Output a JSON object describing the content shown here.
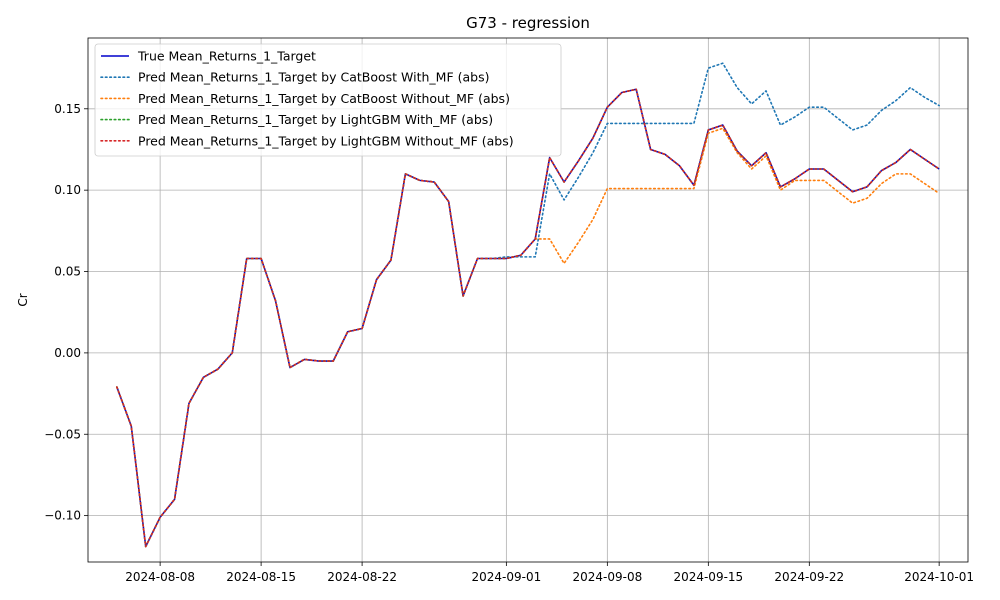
{
  "chart_data": {
    "type": "line",
    "title": "G73 - regression",
    "xlabel": "",
    "ylabel": "Cr",
    "grid": true,
    "legend_position": "upper-left",
    "x_ticks": [
      "2024-08-08",
      "2024-08-15",
      "2024-08-22",
      "2024-09-01",
      "2024-09-08",
      "2024-09-15",
      "2024-09-22",
      "2024-10-01"
    ],
    "y_ticks": [
      "−0.10",
      "−0.05",
      "0.00",
      "0.05",
      "0.10",
      "0.15"
    ],
    "xlim": [
      "2024-08-03",
      "2024-10-03"
    ],
    "ylim": [
      -0.1285,
      0.1935
    ],
    "series": [
      {
        "name": "True Mean_Returns_1_Target",
        "color": "#0000cc",
        "style": "solid",
        "points": [
          [
            "2024-08-05",
            -0.021
          ],
          [
            "2024-08-06",
            -0.045
          ],
          [
            "2024-08-07",
            -0.119
          ],
          [
            "2024-08-08",
            -0.101
          ],
          [
            "2024-08-09",
            -0.09
          ],
          [
            "2024-08-10",
            -0.031
          ],
          [
            "2024-08-11",
            -0.015
          ],
          [
            "2024-08-12",
            -0.01
          ],
          [
            "2024-08-13",
            0.0
          ],
          [
            "2024-08-14",
            0.058
          ],
          [
            "2024-08-15",
            0.058
          ],
          [
            "2024-08-16",
            0.032
          ],
          [
            "2024-08-17",
            -0.009
          ],
          [
            "2024-08-18",
            -0.004
          ],
          [
            "2024-08-19",
            -0.005
          ],
          [
            "2024-08-20",
            -0.005
          ],
          [
            "2024-08-21",
            0.013
          ],
          [
            "2024-08-22",
            0.015
          ],
          [
            "2024-08-23",
            0.045
          ],
          [
            "2024-08-24",
            0.057
          ],
          [
            "2024-08-25",
            0.11
          ],
          [
            "2024-08-26",
            0.106
          ],
          [
            "2024-08-27",
            0.105
          ],
          [
            "2024-08-28",
            0.093
          ],
          [
            "2024-08-29",
            0.035
          ],
          [
            "2024-08-30",
            0.058
          ],
          [
            "2024-08-31",
            0.058
          ],
          [
            "2024-09-01",
            0.058
          ],
          [
            "2024-09-02",
            0.06
          ],
          [
            "2024-09-03",
            0.07
          ],
          [
            "2024-09-04",
            0.12
          ],
          [
            "2024-09-05",
            0.105
          ],
          [
            "2024-09-06",
            0.118
          ],
          [
            "2024-09-07",
            0.132
          ],
          [
            "2024-09-08",
            0.151
          ],
          [
            "2024-09-09",
            0.16
          ],
          [
            "2024-09-10",
            0.162
          ],
          [
            "2024-09-11",
            0.125
          ],
          [
            "2024-09-12",
            0.122
          ],
          [
            "2024-09-13",
            0.115
          ],
          [
            "2024-09-14",
            0.103
          ],
          [
            "2024-09-15",
            0.137
          ],
          [
            "2024-09-16",
            0.14
          ],
          [
            "2024-09-17",
            0.124
          ],
          [
            "2024-09-18",
            0.115
          ],
          [
            "2024-09-19",
            0.123
          ],
          [
            "2024-09-20",
            0.102
          ],
          [
            "2024-09-21",
            0.107
          ],
          [
            "2024-09-22",
            0.113
          ],
          [
            "2024-09-23",
            0.113
          ],
          [
            "2024-09-24",
            0.106
          ],
          [
            "2024-09-25",
            0.099
          ],
          [
            "2024-09-26",
            0.102
          ],
          [
            "2024-09-27",
            0.112
          ],
          [
            "2024-09-28",
            0.117
          ],
          [
            "2024-09-29",
            0.125
          ],
          [
            "2024-09-30",
            0.119
          ],
          [
            "2024-10-01",
            0.113
          ]
        ]
      },
      {
        "name": "Pred Mean_Returns_1_Target by CatBoost With_MF (abs)",
        "color": "#1f77b4",
        "style": "dotted",
        "points": [
          [
            "2024-08-05",
            -0.021
          ],
          [
            "2024-08-06",
            -0.045
          ],
          [
            "2024-08-07",
            -0.119
          ],
          [
            "2024-08-08",
            -0.101
          ],
          [
            "2024-08-09",
            -0.09
          ],
          [
            "2024-08-10",
            -0.031
          ],
          [
            "2024-08-11",
            -0.015
          ],
          [
            "2024-08-12",
            -0.01
          ],
          [
            "2024-08-13",
            0.0
          ],
          [
            "2024-08-14",
            0.058
          ],
          [
            "2024-08-15",
            0.058
          ],
          [
            "2024-08-16",
            0.032
          ],
          [
            "2024-08-17",
            -0.009
          ],
          [
            "2024-08-18",
            -0.004
          ],
          [
            "2024-08-19",
            -0.005
          ],
          [
            "2024-08-20",
            -0.005
          ],
          [
            "2024-08-21",
            0.013
          ],
          [
            "2024-08-22",
            0.015
          ],
          [
            "2024-08-23",
            0.045
          ],
          [
            "2024-08-24",
            0.057
          ],
          [
            "2024-08-25",
            0.11
          ],
          [
            "2024-08-26",
            0.106
          ],
          [
            "2024-08-27",
            0.105
          ],
          [
            "2024-08-28",
            0.093
          ],
          [
            "2024-08-29",
            0.035
          ],
          [
            "2024-08-30",
            0.058
          ],
          [
            "2024-08-31",
            0.058
          ],
          [
            "2024-09-01",
            0.059
          ],
          [
            "2024-09-02",
            0.059
          ],
          [
            "2024-09-03",
            0.059
          ],
          [
            "2024-09-04",
            0.11
          ],
          [
            "2024-09-05",
            0.094
          ],
          [
            "2024-09-06",
            0.108
          ],
          [
            "2024-09-07",
            0.123
          ],
          [
            "2024-09-08",
            0.141
          ],
          [
            "2024-09-09",
            0.141
          ],
          [
            "2024-09-10",
            0.141
          ],
          [
            "2024-09-11",
            0.141
          ],
          [
            "2024-09-12",
            0.141
          ],
          [
            "2024-09-13",
            0.141
          ],
          [
            "2024-09-14",
            0.141
          ],
          [
            "2024-09-15",
            0.175
          ],
          [
            "2024-09-16",
            0.178
          ],
          [
            "2024-09-17",
            0.163
          ],
          [
            "2024-09-18",
            0.153
          ],
          [
            "2024-09-19",
            0.161
          ],
          [
            "2024-09-20",
            0.14
          ],
          [
            "2024-09-21",
            0.145
          ],
          [
            "2024-09-22",
            0.151
          ],
          [
            "2024-09-23",
            0.151
          ],
          [
            "2024-09-24",
            0.144
          ],
          [
            "2024-09-25",
            0.137
          ],
          [
            "2024-09-26",
            0.14
          ],
          [
            "2024-09-27",
            0.149
          ],
          [
            "2024-09-28",
            0.155
          ],
          [
            "2024-09-29",
            0.163
          ],
          [
            "2024-09-30",
            0.157
          ],
          [
            "2024-10-01",
            0.152
          ]
        ]
      },
      {
        "name": "Pred Mean_Returns_1_Target by CatBoost Without_MF (abs)",
        "color": "#ff7f0e",
        "style": "dotted",
        "points": [
          [
            "2024-08-05",
            -0.021
          ],
          [
            "2024-08-06",
            -0.045
          ],
          [
            "2024-08-07",
            -0.119
          ],
          [
            "2024-08-08",
            -0.101
          ],
          [
            "2024-08-09",
            -0.09
          ],
          [
            "2024-08-10",
            -0.031
          ],
          [
            "2024-08-11",
            -0.015
          ],
          [
            "2024-08-12",
            -0.01
          ],
          [
            "2024-08-13",
            0.0
          ],
          [
            "2024-08-14",
            0.058
          ],
          [
            "2024-08-15",
            0.058
          ],
          [
            "2024-08-16",
            0.032
          ],
          [
            "2024-08-17",
            -0.009
          ],
          [
            "2024-08-18",
            -0.004
          ],
          [
            "2024-08-19",
            -0.005
          ],
          [
            "2024-08-20",
            -0.005
          ],
          [
            "2024-08-21",
            0.013
          ],
          [
            "2024-08-22",
            0.015
          ],
          [
            "2024-08-23",
            0.045
          ],
          [
            "2024-08-24",
            0.057
          ],
          [
            "2024-08-25",
            0.11
          ],
          [
            "2024-08-26",
            0.106
          ],
          [
            "2024-08-27",
            0.105
          ],
          [
            "2024-08-28",
            0.093
          ],
          [
            "2024-08-29",
            0.035
          ],
          [
            "2024-08-30",
            0.058
          ],
          [
            "2024-08-31",
            0.058
          ],
          [
            "2024-09-01",
            0.058
          ],
          [
            "2024-09-02",
            0.06
          ],
          [
            "2024-09-03",
            0.07
          ],
          [
            "2024-09-04",
            0.07
          ],
          [
            "2024-09-05",
            0.055
          ],
          [
            "2024-09-06",
            0.068
          ],
          [
            "2024-09-07",
            0.082
          ],
          [
            "2024-09-08",
            0.101
          ],
          [
            "2024-09-09",
            0.101
          ],
          [
            "2024-09-10",
            0.101
          ],
          [
            "2024-09-11",
            0.101
          ],
          [
            "2024-09-12",
            0.101
          ],
          [
            "2024-09-13",
            0.101
          ],
          [
            "2024-09-14",
            0.101
          ],
          [
            "2024-09-15",
            0.135
          ],
          [
            "2024-09-16",
            0.138
          ],
          [
            "2024-09-17",
            0.123
          ],
          [
            "2024-09-18",
            0.113
          ],
          [
            "2024-09-19",
            0.121
          ],
          [
            "2024-09-20",
            0.1
          ],
          [
            "2024-09-21",
            0.106
          ],
          [
            "2024-09-22",
            0.106
          ],
          [
            "2024-09-23",
            0.106
          ],
          [
            "2024-09-24",
            0.099
          ],
          [
            "2024-09-25",
            0.092
          ],
          [
            "2024-09-26",
            0.095
          ],
          [
            "2024-09-27",
            0.104
          ],
          [
            "2024-09-28",
            0.11
          ],
          [
            "2024-09-29",
            0.11
          ],
          [
            "2024-09-30",
            0.104
          ],
          [
            "2024-10-01",
            0.098
          ]
        ]
      },
      {
        "name": "Pred Mean_Returns_1_Target by LightGBM With_MF (abs)",
        "color": "#2ca02c",
        "style": "dotted",
        "same_as": "True Mean_Returns_1_Target"
      },
      {
        "name": "Pred Mean_Returns_1_Target by LightGBM Without_MF (abs)",
        "color": "#d62728",
        "style": "dotted",
        "same_as": "True Mean_Returns_1_Target"
      }
    ]
  }
}
